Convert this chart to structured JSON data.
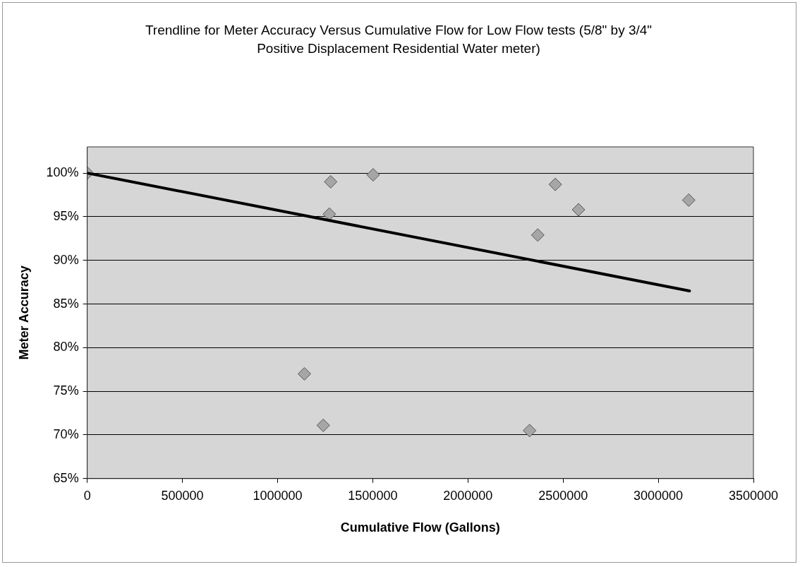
{
  "chart_data": {
    "type": "scatter",
    "title": "Trendline for Meter Accuracy Versus Cumulative Flow for Low Flow tests (5/8\" by 3/4\" Positive Displacement Residential Water meter)",
    "xlabel": "Cumulative Flow (Gallons)",
    "ylabel": "Meter Accuracy",
    "series": [
      {
        "color": "#a6a6a6",
        "x": [
          0,
          1141000,
          1240000,
          1272000,
          1279000,
          1502000,
          2324000,
          2367000,
          2459000,
          2581000,
          3160000
        ],
        "values": [
          100,
          77.0,
          71.1,
          95.3,
          99.0,
          99.8,
          70.5,
          92.9,
          98.7,
          95.8,
          96.9
        ]
      },
      {
        "type": "line",
        "marker": "none",
        "color": "#000000",
        "x": [
          0,
          3164000
        ],
        "values": [
          100,
          86.5
        ]
      }
    ],
    "xlim": [
      0,
      3500000
    ],
    "xticks": [
      0,
      500000,
      1000000,
      1500000,
      2000000,
      2500000,
      3000000,
      3500000
    ],
    "ylim": [
      65,
      103
    ],
    "yticks": [
      {
        "value": 65,
        "label": "65%"
      },
      {
        "value": 70,
        "label": "70%"
      },
      {
        "value": 75,
        "label": "75%"
      },
      {
        "value": 80,
        "label": "80%"
      },
      {
        "value": 85,
        "label": "85%"
      },
      {
        "value": 90,
        "label": "90%"
      },
      {
        "value": 95,
        "label": "95%"
      },
      {
        "value": 100,
        "label": "100%"
      }
    ],
    "grid": "y",
    "legend": false,
    "marker": "diamond"
  }
}
